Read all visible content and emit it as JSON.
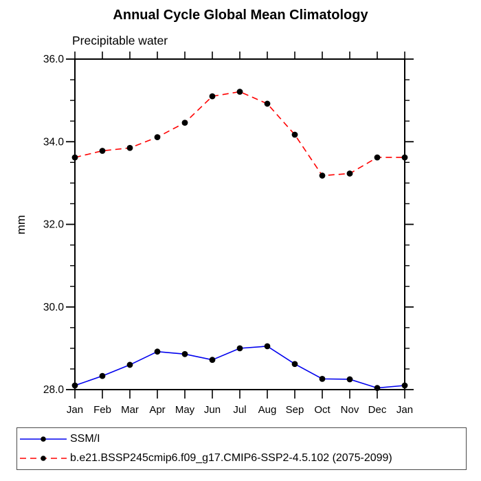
{
  "chart_data": {
    "type": "line",
    "title": "Annual Cycle Global Mean Climatology",
    "subtitle": "Precipitable water",
    "ylabel": "mm",
    "xlabel": "",
    "x_tick_labels": [
      "Jan",
      "Feb",
      "Mar",
      "Apr",
      "May",
      "Jun",
      "Jul",
      "Aug",
      "Sep",
      "Oct",
      "Nov",
      "Dec",
      "Jan"
    ],
    "ylim": [
      28.0,
      36.0
    ],
    "y_major_ticks": [
      28.0,
      30.0,
      32.0,
      34.0,
      36.0
    ],
    "y_tick_labels": [
      "28.0",
      "30.0",
      "32.0",
      "34.0",
      "36.0"
    ],
    "y_minor_step": 0.5,
    "grid": false,
    "legend_position": "bottom",
    "axis_color": "#000000",
    "series": [
      {
        "name": "SSM/I",
        "color": "#0000ee",
        "style": "solid",
        "marker": "circle",
        "marker_color": "#000000",
        "values": [
          28.1,
          28.33,
          28.6,
          28.92,
          28.86,
          28.72,
          29.0,
          29.05,
          28.62,
          28.26,
          28.25,
          28.04,
          28.1
        ]
      },
      {
        "name": "b.e21.BSSP245cmip6.f09_g17.CMIP6-SSP2-4.5.102 (2075-2099)",
        "color": "#ff0000",
        "style": "dashed",
        "marker": "circle",
        "marker_color": "#000000",
        "values": [
          33.62,
          33.78,
          33.85,
          34.11,
          34.46,
          35.1,
          35.21,
          34.92,
          34.17,
          33.18,
          33.23,
          33.62,
          33.62
        ]
      }
    ]
  }
}
